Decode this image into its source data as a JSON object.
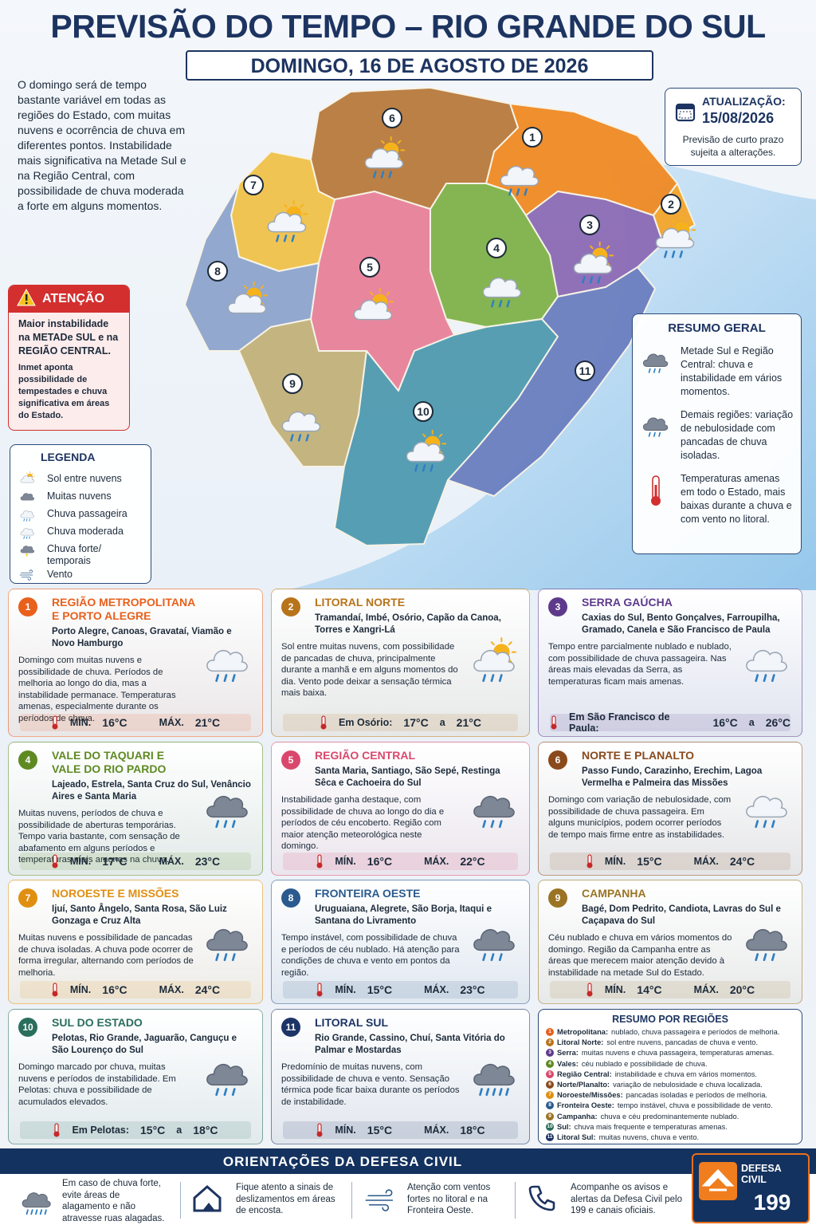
{
  "header": {
    "title": "PREVISÃO DO TEMPO – RIO GRANDE DO SUL",
    "date": "DOMINGO, 16 DE AGOSTO DE 2026"
  },
  "intro": "O domingo será de tempo bastante variável em todas as regiões do Estado, com muitas nuvens e ocorrência de chuva em diferentes pontos. Instabilidade mais significativa na Metade Sul e na Região Central, com possibilidade de chuva moderada a forte em alguns momentos.",
  "update": {
    "label": "ATUALIZAÇÃO:",
    "date": "15/08/2026",
    "note": "Previsão de curto prazo sujeita a alterações."
  },
  "attention": {
    "title": "ATENÇÃO",
    "text": "Maior instabilidade na METADe SUL e na REGIÃO CENTRAL.",
    "detail": "Inmet aponta possibilidade de tempestades e chuva significativa em áreas do Estado."
  },
  "legend": {
    "title": "LEGENDA",
    "items": [
      "Sol entre nuvens",
      "Muitas nuvens",
      "Chuva passageira",
      "Chuva moderada",
      "Chuva forte/ temporais",
      "Vento"
    ]
  },
  "summary": {
    "title": "RESUMO GERAL",
    "items": [
      "Metade Sul e Região Central: chuva e instabilidade em vários momentos.",
      "Demais regiões: variação de nebulosidade com pancadas de chuva isoladas.",
      "Temperaturas amenas em todo o Estado, mais baixas durante a chuva e com vento no litoral."
    ]
  },
  "map": {
    "regions": [
      {
        "label": "1",
        "color": "#f08a24"
      },
      {
        "label": "2",
        "color": "#f4a62a"
      },
      {
        "label": "3",
        "color": "#8b6bb5"
      },
      {
        "label": "4",
        "color": "#7fb24a"
      },
      {
        "label": "5",
        "color": "#e8819a"
      },
      {
        "label": "6",
        "color": "#b97a3c"
      },
      {
        "label": "7",
        "color": "#f0c24a"
      },
      {
        "label": "8",
        "color": "#8fa4cc"
      },
      {
        "label": "9",
        "color": "#c2b27a"
      },
      {
        "label": "10",
        "color": "#4f9ab0"
      },
      {
        "label": "11",
        "color": "#6b7fc0"
      }
    ]
  },
  "cards": [
    {
      "number": "1",
      "color": "#e8601c",
      "title": "REGIÃO METROPOLITANA E PORTO ALEGRE",
      "cities": "Porto Alegre, Canoas, Gravataí, Viamão e Novo Hamburgo",
      "text": "Domingo com muitas nuvens e possibilidade de chuva. Períodos de melhoria ao longo do dia, mas a instabilidade permanace. Temperaturas amenas, especialmente durante os períodos de chuva.",
      "temp": [
        "MÍN.",
        "16°C",
        "MÁX.",
        "21°C"
      ]
    },
    {
      "number": "2",
      "color": "#b8741a",
      "title": "LITORAL NORTE",
      "cities": "Tramandaí, Imbé, Osório, Capão da Canoa, Torres e Xangri-Lá",
      "text": "Sol entre muitas nuvens, com possibilidade de pancadas de chuva, principalmente durante a manhã e em alguns momentos do dia. Vento pode deixar a sensação térmica mais baixa.",
      "temp": [
        "Em Osório:",
        "17°C",
        "a",
        "21°C"
      ]
    },
    {
      "number": "3",
      "color": "#5e3a8c",
      "title": "SERRA GAÚCHA",
      "cities": "Caxias do Sul, Bento Gonçalves, Farroupilha, Gramado, Canela e São Francisco de Paula",
      "text": "Tempo entre parcialmente nublado e nublado, com possibilidade de chuva passageira. Nas áreas mais elevadas da Serra, as temperaturas ficam mais amenas.",
      "temp": [
        "Em São Francisco de Paula:",
        "16°C",
        "a",
        "26°C"
      ]
    },
    {
      "number": "4",
      "color": "#5f8a22",
      "title": "VALE DO TAQUARI E VALE DO RIO PARDO",
      "cities": "Lajeado, Estrela, Santa Cruz do Sul, Venâncio Aires e Santa Maria",
      "text": "Muitas nuvens, períodos de chuva e possibilidade de aberturas temporárias. Tempo varia bastante, com sensação de abafamento em alguns períodos e temperaturas mais amenas na chuva.",
      "temp": [
        "MÍN.",
        "17°C",
        "MÁX.",
        "23°C"
      ]
    },
    {
      "number": "5",
      "color": "#d9486c",
      "title": "REGIÃO CENTRAL",
      "cities": "Santa Maria, Santiago, São Sepé, Restinga Sêca e Cachoeira do Sul",
      "text": "Instabilidade ganha destaque, com possibilidade de chuva ao longo do dia e períodos de céu encoberto. Região com maior atenção meteorológica neste domingo.",
      "temp": [
        "MÍN.",
        "16°C",
        "MÁX.",
        "22°C"
      ]
    },
    {
      "number": "6",
      "color": "#8a4a1c",
      "title": "NORTE E PLANALTO",
      "cities": "Passo Fundo, Carazinho, Erechim, Lagoa Vermelha e Palmeira das Missões",
      "text": "Domingo com variação de nebulosidade, com possibilidade de chuva passageira. Em alguns municípios, podem ocorrer períodos de tempo mais firme entre as instabilidades.",
      "temp": [
        "MÍN.",
        "15°C",
        "MÁX.",
        "24°C"
      ]
    },
    {
      "number": "7",
      "color": "#e08f12",
      "title": "NOROESTE E MISSÕES",
      "cities": "Ijuí, Santo Ângelo, Santa Rosa, São Luiz Gonzaga e Cruz Alta",
      "text": "Muitas nuvens e possibilidade de pancadas de chuva isoladas. A chuva pode ocorrer de forma irregular, alternando com períodos de melhoria.",
      "temp": [
        "MÍN.",
        "16°C",
        "MÁX.",
        "24°C"
      ]
    },
    {
      "number": "8",
      "color": "#2b5a8e",
      "title": "FRONTEIRA OESTE",
      "cities": "Uruguaiana, Alegrete, São Borja, Itaqui e Santana do Livramento",
      "text": "Tempo instável, com possibilidade de chuva e períodos de céu nublado. Há atenção para condições de chuva e vento em pontos da região.",
      "temp": [
        "MÍN.",
        "15°C",
        "MÁX.",
        "23°C"
      ]
    },
    {
      "number": "9",
      "color": "#9a7424",
      "title": "CAMPANHA",
      "cities": "Bagé, Dom Pedrito, Candiota, Lavras do Sul e Caçapava do Sul",
      "text": "Céu nublado e chuva em vários momentos do domingo. Região da Campanha entre as áreas que merecem maior atenção devido à instabilidade na metade Sul do Estado.",
      "temp": [
        "MÍN.",
        "14°C",
        "MÁX.",
        "20°C"
      ]
    },
    {
      "number": "10",
      "color": "#2a6e5c",
      "title": "SUL DO ESTADO",
      "cities": "Pelotas, Rio Grande, Jaguarão, Canguçu e São Lourenço do Sul",
      "text": "Domingo marcado por chuva, muitas nuvens e períodos de instabilidade. Em Pelotas: chuva e possibilidade de acumulados elevados.",
      "temp": [
        "Em Pelotas:",
        "15°C",
        "a",
        "18°C"
      ]
    },
    {
      "number": "11",
      "color": "#1d3466",
      "title": "LITORAL SUL",
      "cities": "Rio Grande, Cassino, Chuí, Santa Vitória do Palmar e Mostardas",
      "text": "Predomínio de muitas nuvens, com possibilidade de chuva e vento. Sensação térmica pode ficar baixa durante os períodos de instabilidade.",
      "temp": [
        "MÍN.",
        "15°C",
        "MÁX.",
        "18°C"
      ]
    }
  ],
  "regions_summary": {
    "title": "RESUMO POR REGIÕES",
    "items": [
      {
        "number": "1",
        "name": "Metropolitana:",
        "text": "nublado, chuva passageira e períodos de melhoria."
      },
      {
        "number": "2",
        "name": "Litoral Norte:",
        "text": "sol entre nuvens, pancadas de chuva e vento."
      },
      {
        "number": "3",
        "name": "Serra:",
        "text": "muitas nuvens e chuva passageira, temperaturas amenas."
      },
      {
        "number": "4",
        "name": "Vales:",
        "text": "céu nublado e possibilidade de chuva."
      },
      {
        "number": "5",
        "name": "Região Central:",
        "text": "instabilidade e chuva em vários momentos."
      },
      {
        "number": "6",
        "name": "Norte/Planalto:",
        "text": "variação de nebulosidade e chuva localizada."
      },
      {
        "number": "7",
        "name": "Noroeste/Missões:",
        "text": "pancadas isoladas e períodos de melhoria."
      },
      {
        "number": "8",
        "name": "Fronteira Oeste:",
        "text": "tempo instável, chuva e possibilidade de vento."
      },
      {
        "number": "9",
        "name": "Campanha:",
        "text": "chuva e céu predominantemente nublado."
      },
      {
        "number": "10",
        "name": "Sul:",
        "text": "chuva mais frequente e temperaturas amenas."
      },
      {
        "number": "11",
        "name": "Litoral Sul:",
        "text": "muitas nuvens, chuva e vento."
      }
    ]
  },
  "footer": {
    "title": "ORIENTAÇÕES DA DEFESA CIVIL",
    "items": [
      "Em caso de chuva forte, evite áreas de alagamento e não atravesse ruas alagadas.",
      "Fique atento a sinais de deslizamentos em áreas de encosta.",
      "Atenção com ventos fortes no litoral e na Fronteira Oeste.",
      "Acompanhe os avisos e alertas da Defesa Civil pelo 199 e canais oficiais."
    ],
    "brand": "DEFESA CIVIL",
    "phone": "199"
  }
}
